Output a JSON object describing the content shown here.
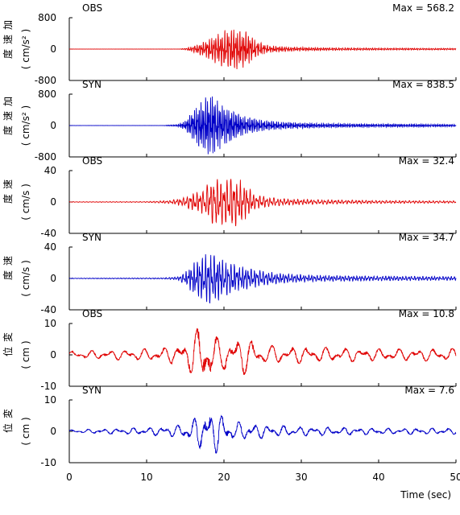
{
  "chart_data": [
    {
      "type": "line",
      "tag": "OBS",
      "max_label": "Max = 568.2",
      "ylabel": [
        "加",
        "速",
        "度",
        "( cm/s² )"
      ],
      "ylim": [
        -800,
        800
      ],
      "yticks": [
        "800",
        "0",
        "-800"
      ],
      "color": "#e00000",
      "envelope": [
        [
          0,
          1
        ],
        [
          14,
          1
        ],
        [
          15,
          20
        ],
        [
          16,
          80
        ],
        [
          17,
          160
        ],
        [
          18,
          260
        ],
        [
          19,
          380
        ],
        [
          20,
          470
        ],
        [
          21,
          568
        ],
        [
          22,
          520
        ],
        [
          23,
          430
        ],
        [
          24,
          240
        ],
        [
          25,
          140
        ],
        [
          26,
          90
        ],
        [
          28,
          60
        ],
        [
          32,
          40
        ],
        [
          38,
          30
        ],
        [
          45,
          25
        ],
        [
          50,
          22
        ]
      ],
      "period": 0.28,
      "seed": 3
    },
    {
      "type": "line",
      "tag": "SYN",
      "max_label": "Max = 838.5",
      "ylabel": [
        "加",
        "速",
        "度",
        "( cm/s² )"
      ],
      "ylim": [
        -800,
        800
      ],
      "yticks": [
        "800",
        "0",
        "-800"
      ],
      "color": "#0000c8",
      "envelope": [
        [
          0,
          2
        ],
        [
          12,
          2
        ],
        [
          14,
          30
        ],
        [
          15,
          120
        ],
        [
          16,
          380
        ],
        [
          17,
          620
        ],
        [
          18,
          820
        ],
        [
          19,
          700
        ],
        [
          20,
          520
        ],
        [
          21,
          400
        ],
        [
          22,
          300
        ],
        [
          23,
          220
        ],
        [
          24,
          180
        ],
        [
          26,
          120
        ],
        [
          28,
          90
        ],
        [
          32,
          60
        ],
        [
          38,
          45
        ],
        [
          45,
          40
        ],
        [
          50,
          30
        ]
      ],
      "period": 0.22,
      "seed": 7
    },
    {
      "type": "line",
      "tag": "OBS",
      "max_label": "Max = 32.4",
      "ylabel": [
        "速",
        "度",
        "( cm/s )"
      ],
      "ylim": [
        -40,
        40
      ],
      "yticks": [
        "40",
        "0",
        "-40"
      ],
      "color": "#e00000",
      "envelope": [
        [
          0,
          0.4
        ],
        [
          10,
          0.6
        ],
        [
          13,
          2
        ],
        [
          15,
          6
        ],
        [
          16,
          12
        ],
        [
          17,
          14
        ],
        [
          18,
          24
        ],
        [
          19,
          31
        ],
        [
          20,
          28
        ],
        [
          21,
          32
        ],
        [
          22,
          30
        ],
        [
          23,
          20
        ],
        [
          24,
          10
        ],
        [
          26,
          6
        ],
        [
          28,
          4
        ],
        [
          32,
          3
        ],
        [
          40,
          2
        ],
        [
          50,
          1.5
        ]
      ],
      "period": 0.45,
      "seed": 11
    },
    {
      "type": "line",
      "tag": "SYN",
      "max_label": "Max = 34.7",
      "ylabel": [
        "速",
        "度",
        "( cm/s )"
      ],
      "ylim": [
        -40,
        40
      ],
      "yticks": [
        "40",
        "0",
        "-40"
      ],
      "color": "#0000c8",
      "envelope": [
        [
          0,
          0.5
        ],
        [
          12,
          0.8
        ],
        [
          14,
          2
        ],
        [
          15,
          8
        ],
        [
          16,
          20
        ],
        [
          17,
          27
        ],
        [
          18,
          34
        ],
        [
          19,
          30
        ],
        [
          20,
          24
        ],
        [
          21,
          20
        ],
        [
          22,
          16
        ],
        [
          24,
          12
        ],
        [
          26,
          8
        ],
        [
          28,
          6
        ],
        [
          32,
          4
        ],
        [
          40,
          3
        ],
        [
          50,
          2.5
        ]
      ],
      "period": 0.38,
      "seed": 17
    },
    {
      "type": "line",
      "tag": "OBS",
      "max_label": "Max = 10.8",
      "ylabel": [
        "変",
        "位",
        "( cm )"
      ],
      "ylim": [
        -10,
        10
      ],
      "yticks": [
        "10",
        "0",
        "-10"
      ],
      "color": "#e00000",
      "envelope": [
        [
          0,
          1.2
        ],
        [
          5,
          1.5
        ],
        [
          10,
          2
        ],
        [
          14,
          3
        ],
        [
          16,
          7
        ],
        [
          17,
          10
        ],
        [
          18,
          10.8
        ],
        [
          19,
          6
        ],
        [
          20,
          5
        ],
        [
          21,
          5
        ],
        [
          22,
          7
        ],
        [
          23,
          6
        ],
        [
          24,
          4
        ],
        [
          26,
          3
        ],
        [
          28,
          3
        ],
        [
          32,
          2.5
        ],
        [
          40,
          2
        ],
        [
          50,
          2
        ]
      ],
      "period": 2.4,
      "seed": 23
    },
    {
      "type": "line",
      "tag": "SYN",
      "max_label": "Max = 7.6",
      "ylabel": [
        "変",
        "位",
        "( cm )"
      ],
      "ylim": [
        -10,
        10
      ],
      "yticks": [
        "10",
        "0",
        "-10"
      ],
      "color": "#0000c8",
      "envelope": [
        [
          0,
          0.5
        ],
        [
          5,
          0.8
        ],
        [
          10,
          1.2
        ],
        [
          14,
          2
        ],
        [
          16,
          4
        ],
        [
          17,
          6
        ],
        [
          18,
          7.6
        ],
        [
          19,
          7
        ],
        [
          20,
          5
        ],
        [
          21,
          3
        ],
        [
          22,
          3
        ],
        [
          24,
          2.5
        ],
        [
          26,
          2
        ],
        [
          30,
          1.5
        ],
        [
          40,
          1
        ],
        [
          50,
          1
        ]
      ],
      "period": 2.0,
      "seed": 31
    }
  ],
  "xaxis": {
    "xlim": [
      0,
      50
    ],
    "ticks": [
      "0",
      "10",
      "20",
      "30",
      "40",
      "50"
    ],
    "label": "Time (sec)"
  }
}
